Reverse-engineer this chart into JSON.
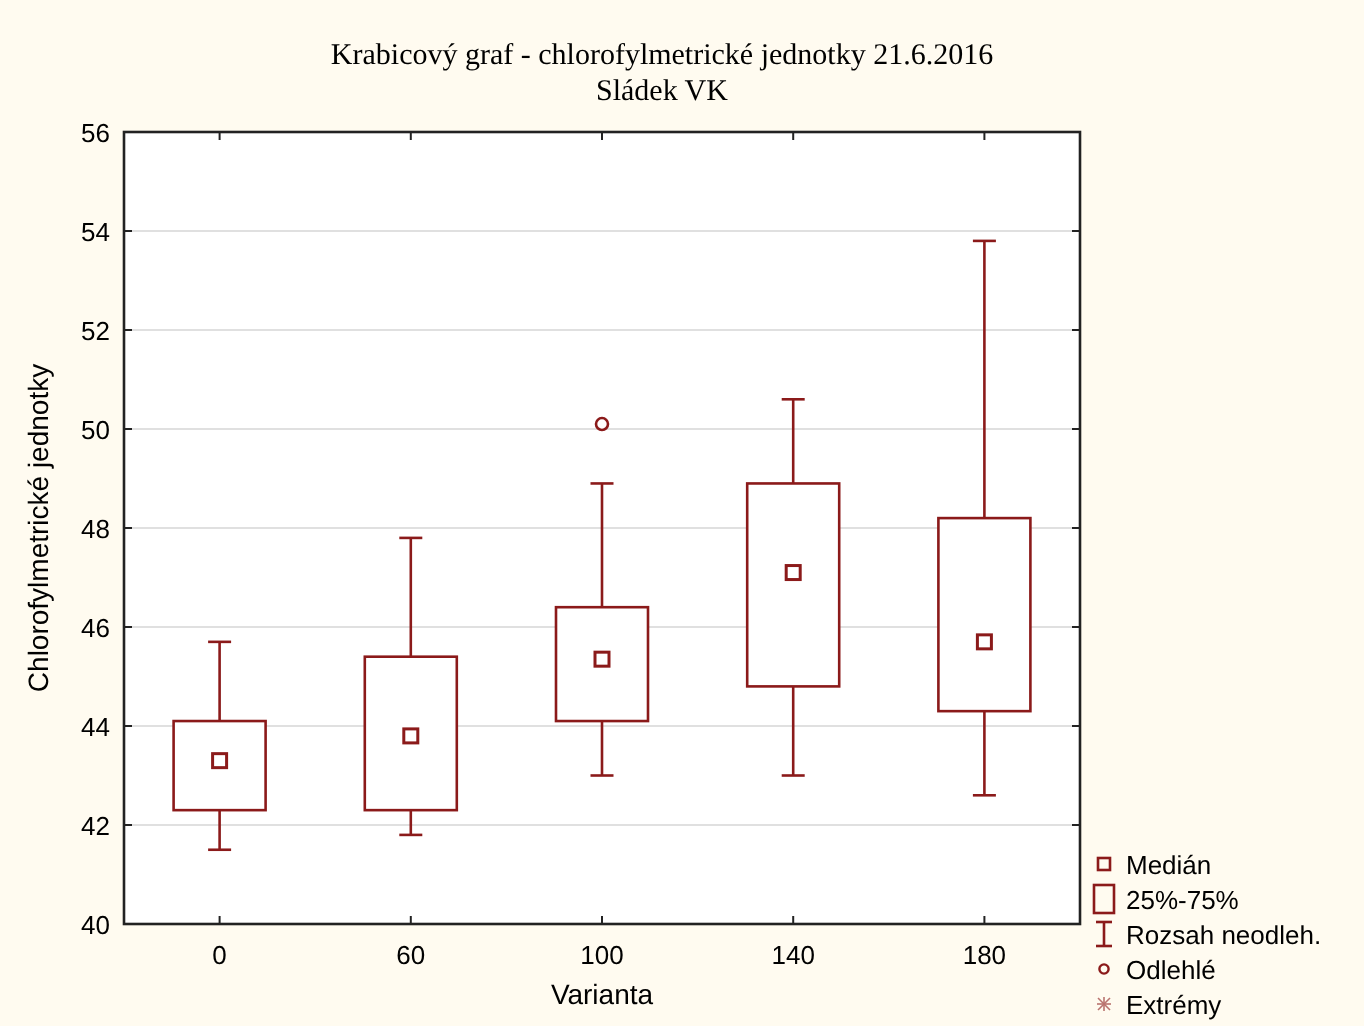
{
  "chart_data": {
    "type": "box",
    "title": "Krabicový graf - chlorofylmetrické jednotky 21.6.2016",
    "subtitle": "Sládek VK",
    "xlabel": "Varianta",
    "ylabel": "Chlorofylmetrické jednotky",
    "categories": [
      "0",
      "60",
      "100",
      "140",
      "180"
    ],
    "color": "#8b1a1a",
    "ylim": [
      40,
      56
    ],
    "yticks": [
      40,
      42,
      44,
      46,
      48,
      50,
      52,
      54,
      56
    ],
    "grid": "y",
    "annotations": [
      "Medián",
      "25%-75%",
      "Rozsah neodleh.",
      "Odlehlé",
      "Extrémy"
    ],
    "boxes": [
      {
        "low": 41.5,
        "q1": 42.3,
        "median": 43.3,
        "q3": 44.1,
        "high": 45.7
      },
      {
        "low": 41.8,
        "q1": 42.3,
        "median": 43.8,
        "q3": 45.4,
        "high": 47.8
      },
      {
        "low": 43.0,
        "q1": 44.1,
        "median": 45.35,
        "q3": 46.4,
        "high": 48.9,
        "outliers": [
          50.1
        ]
      },
      {
        "low": 43.0,
        "q1": 44.8,
        "median": 47.1,
        "q3": 48.9,
        "high": 50.6
      },
      {
        "low": 42.6,
        "q1": 44.3,
        "median": 45.7,
        "q3": 48.2,
        "high": 53.8
      }
    ]
  }
}
